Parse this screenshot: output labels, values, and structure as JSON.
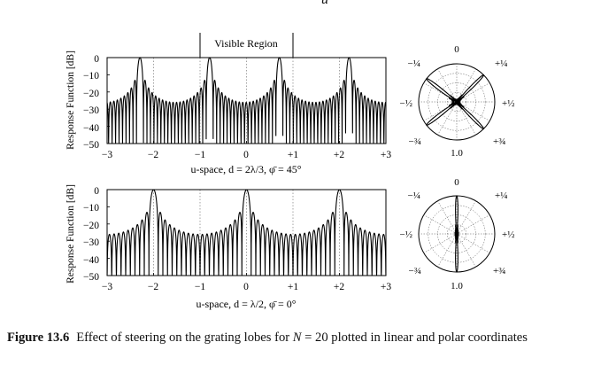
{
  "top_cutoff_char": "u",
  "panels": [
    {
      "ylabel": "Response Function [dB]",
      "visible_region_label": "Visible Region",
      "xlabel": "u-space, d = 2λ/3, φ̄ = 45°",
      "xticks": [
        "−3",
        "−2",
        "−1",
        "0",
        "+1",
        "+2",
        "+3"
      ],
      "yticks": [
        "0",
        "−10",
        "−20",
        "−30",
        "−40",
        "−50"
      ],
      "polar_labels": {
        "top": "0",
        "top_right": "+¼",
        "right": "+½",
        "bottom_right": "+¾",
        "top_left": "−¼",
        "left": "−½",
        "bottom_left": "−¾",
        "bottom": "1.0"
      }
    },
    {
      "ylabel": "Response Function [dB]",
      "xlabel": "u-space, d = λ/2, φ̄ = 0°",
      "xticks": [
        "−3",
        "−2",
        "−1",
        "0",
        "+1",
        "+2",
        "+3"
      ],
      "yticks": [
        "0",
        "−10",
        "−20",
        "−30",
        "−40",
        "−50"
      ],
      "polar_labels": {
        "top": "0",
        "top_right": "+¼",
        "right": "+½",
        "bottom_right": "+¾",
        "top_left": "−¼",
        "left": "−½",
        "bottom_left": "−¾",
        "bottom": "1.0"
      }
    }
  ],
  "caption": {
    "label": "Figure 13.6",
    "text_before": "Effect of steering on the grating lobes for ",
    "var": "N",
    "text_after": " = 20 plotted in linear and polar coordinates"
  },
  "chart_data": [
    {
      "type": "line",
      "title": "",
      "xlabel": "u-space, d = 2λ/3, φ̄ = 45°",
      "ylabel": "Response Function [dB]",
      "xlim": [
        -3,
        3
      ],
      "ylim": [
        -50,
        0
      ],
      "series": [
        {
          "N": 20,
          "d_over_lambda": 0.6667,
          "steer_deg": 45,
          "main_lobes_u": [
            -2.29,
            -0.79,
            0.71,
            2.21
          ]
        }
      ],
      "visible_region_u": [
        -1,
        1
      ]
    },
    {
      "type": "line",
      "title": "",
      "xlabel": "u-space, d = λ/2, φ̄ = 0°",
      "ylabel": "Response Function [dB]",
      "xlim": [
        -3,
        3
      ],
      "ylim": [
        -50,
        0
      ],
      "series": [
        {
          "N": 20,
          "d_over_lambda": 0.5,
          "steer_deg": 0,
          "main_lobes_u": [
            -2,
            0,
            2
          ]
        }
      ],
      "visible_region_u": [
        -1,
        1
      ]
    }
  ]
}
